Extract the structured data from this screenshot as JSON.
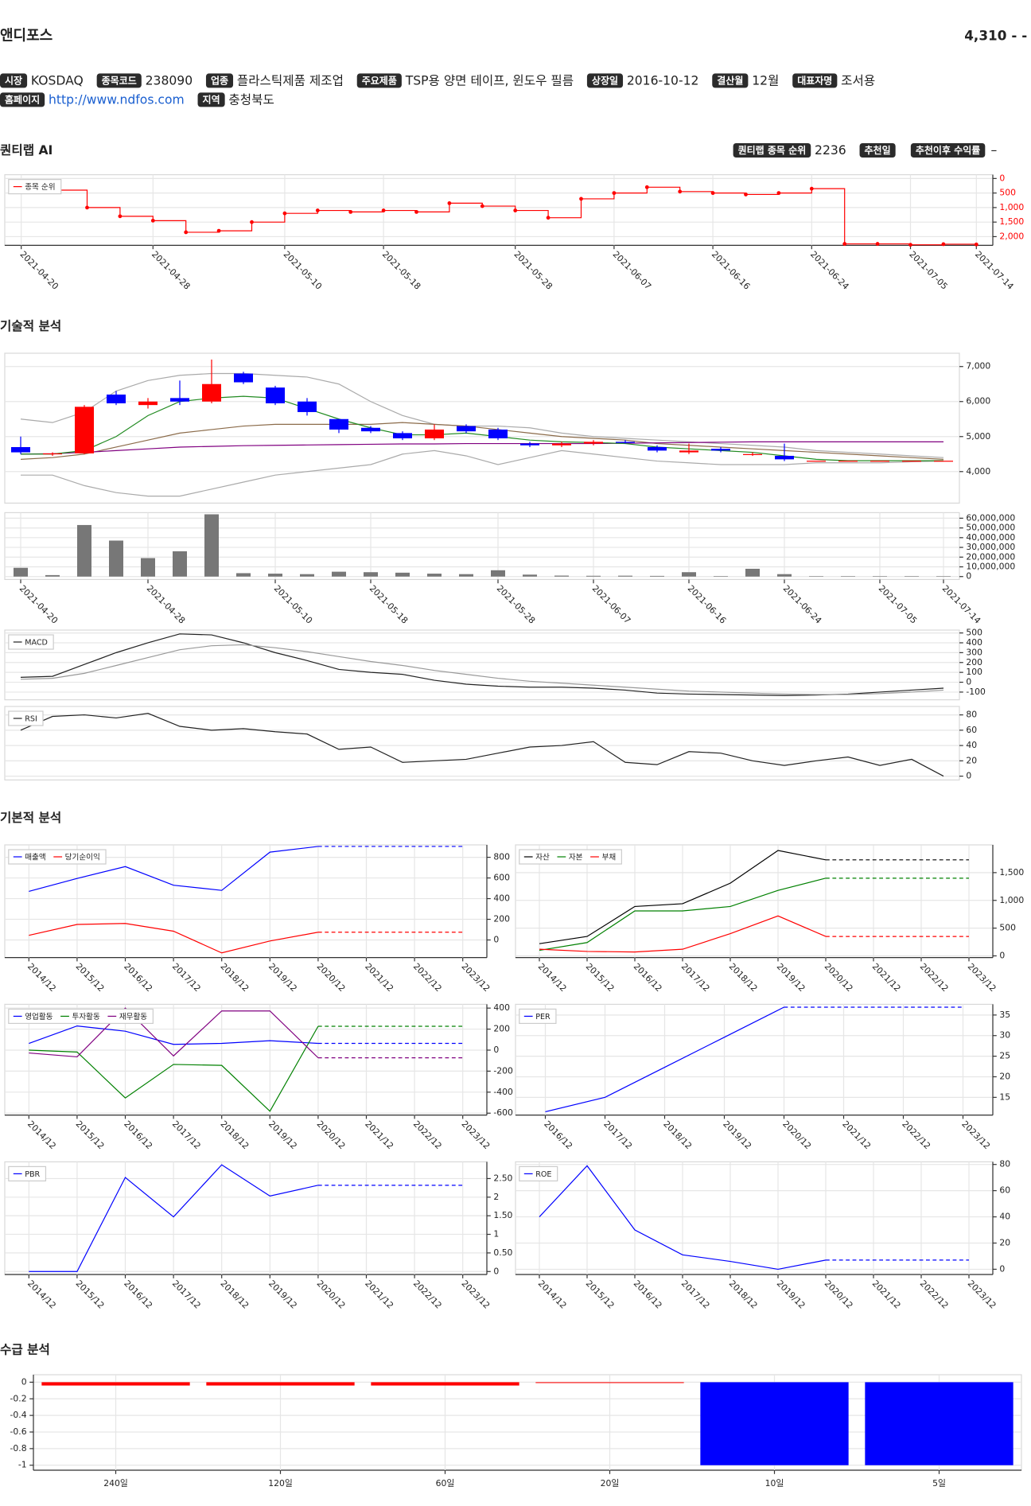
{
  "header": {
    "name": "앤디포스",
    "price": "4,310",
    "change": "- -"
  },
  "info": [
    {
      "label": "시장",
      "value": "KOSDAQ"
    },
    {
      "label": "종목코드",
      "value": "238090"
    },
    {
      "label": "업종",
      "value": "플라스틱제품 제조업"
    },
    {
      "label": "주요제품",
      "value": "TSP용 양면 테이프, 윈도우 필름"
    },
    {
      "label": "상장일",
      "value": "2016-10-12"
    },
    {
      "label": "결산월",
      "value": "12월"
    },
    {
      "label": "대표자명",
      "value": "조서용"
    },
    {
      "label": "홈페이지",
      "value": "http://www.ndfos.com"
    },
    {
      "label": "지역",
      "value": "충청북도"
    }
  ],
  "quantilab": {
    "title": "퀀티랩 AI",
    "rank_label": "퀀티랩 종목 순위",
    "rank": 2236,
    "rec_date_label": "추천일",
    "return_label": "추천이후 수익률",
    "return": "–"
  },
  "sections": [
    "기술적 분석",
    "기본적 분석",
    "수급 분석"
  ],
  "chart_data": [
    {
      "type": "line",
      "step": true,
      "markers": true,
      "legend": "upper left",
      "grid": true,
      "tick_color": "#ff0000",
      "categories": [
        "2021-04-20",
        null,
        null,
        null,
        "2021-04-28",
        null,
        null,
        null,
        "2021-05-10",
        null,
        null,
        "2021-05-18",
        null,
        null,
        null,
        "2021-05-28",
        null,
        null,
        "2021-06-07",
        null,
        null,
        "2021-06-16",
        null,
        null,
        "2021-06-24",
        null,
        null,
        "2021-07-05",
        null,
        "2021-07-14"
      ],
      "series": [
        {
          "name": "종목 순위",
          "color": "#ff0000",
          "values": [
            350,
            400,
            1000,
            1300,
            1450,
            1850,
            1800,
            1500,
            1200,
            1100,
            1150,
            1100,
            1150,
            850,
            950,
            1100,
            1350,
            700,
            500,
            300,
            450,
            500,
            550,
            500,
            350,
            2250,
            2250,
            2280,
            2260,
            2270
          ]
        }
      ],
      "ylim": [
        2300,
        -130
      ],
      "yticks": [
        0,
        500,
        {
          "value": 1000,
          "label": "1,000"
        },
        {
          "value": 1500,
          "label": "1,500"
        },
        {
          "value": 2000,
          "label": "2,000"
        }
      ]
    },
    {
      "type": "candlestick",
      "grid": true,
      "up_color": "#ff0000",
      "down_color": "#0000ff",
      "open": [
        4700,
        4500,
        4520,
        6200,
        5900,
        6100,
        6000,
        6800,
        6400,
        6000,
        5500,
        5250,
        5100,
        4950,
        5300,
        5200,
        4800,
        4750,
        4800,
        4850,
        4700,
        4550,
        4650,
        4500,
        4450,
        4310,
        4310,
        4310,
        4310,
        4310
      ],
      "high": [
        5000,
        4550,
        5900,
        6300,
        6100,
        6600,
        7200,
        6850,
        6450,
        6100,
        5500,
        5300,
        5150,
        5350,
        5350,
        5250,
        4850,
        4850,
        4900,
        4900,
        4750,
        4800,
        4700,
        4550,
        4800,
        4310,
        4310,
        4310,
        4310,
        4310
      ],
      "low": [
        4500,
        4450,
        4500,
        5900,
        5800,
        5900,
        5950,
        6500,
        5900,
        5600,
        5100,
        5100,
        4900,
        4900,
        5100,
        4900,
        4700,
        4700,
        4750,
        4800,
        4550,
        4500,
        4550,
        4450,
        4300,
        4310,
        4310,
        4310,
        4310,
        4310
      ],
      "close": [
        4550,
        4520,
        5850,
        5950,
        6000,
        6000,
        6500,
        6550,
        5950,
        5700,
        5200,
        5150,
        4950,
        5200,
        5150,
        4950,
        4750,
        4800,
        4850,
        4820,
        4600,
        4600,
        4600,
        4500,
        4350,
        4310,
        4310,
        4310,
        4310,
        4310
      ],
      "lines": [
        {
          "color": "#aaaaaa",
          "values": [
            5500,
            5400,
            5700,
            6300,
            6600,
            6750,
            6800,
            6800,
            6750,
            6700,
            6500,
            6000,
            5600,
            5350,
            5300,
            5300,
            5250,
            5100,
            5000,
            4950,
            4900,
            4850,
            4800,
            4750,
            4700,
            4600,
            4550,
            4500,
            4450,
            4400
          ]
        },
        {
          "color": "#aaaaaa",
          "values": [
            3900,
            3900,
            3600,
            3400,
            3300,
            3300,
            3500,
            3700,
            3900,
            4000,
            4100,
            4200,
            4500,
            4600,
            4450,
            4200,
            4400,
            4600,
            4500,
            4400,
            4300,
            4250,
            4200,
            4200,
            4200,
            4250,
            4250,
            4250,
            4280,
            4300
          ]
        },
        {
          "color": "#8b6b4a",
          "values": [
            4350,
            4400,
            4500,
            4700,
            4900,
            5100,
            5200,
            5300,
            5350,
            5350,
            5350,
            5350,
            5400,
            5350,
            5300,
            5200,
            5100,
            5000,
            4950,
            4900,
            4800,
            4750,
            4700,
            4650,
            4600,
            4550,
            4500,
            4450,
            4400,
            4350
          ]
        },
        {
          "color": "#800080",
          "values": [
            4500,
            4510,
            4550,
            4600,
            4650,
            4700,
            4720,
            4740,
            4750,
            4760,
            4770,
            4780,
            4790,
            4790,
            4800,
            4800,
            4800,
            4800,
            4800,
            4810,
            4820,
            4830,
            4840,
            4850,
            4850,
            4850,
            4850,
            4850,
            4850,
            4850
          ]
        },
        {
          "color": "#228b22",
          "values": [
            4500,
            4500,
            4600,
            5000,
            5600,
            6000,
            6100,
            6150,
            6100,
            5800,
            5500,
            5250,
            5050,
            5050,
            5100,
            5000,
            4900,
            4850,
            4830,
            4800,
            4700,
            4650,
            4600,
            4550,
            4450,
            4350,
            4310,
            4310,
            4310,
            4310
          ]
        }
      ],
      "ylim": [
        3100,
        7380
      ],
      "yticks": [
        {
          "value": 4000,
          "label": "4,000"
        },
        {
          "value": 5000,
          "label": "5,000"
        },
        {
          "value": 6000,
          "label": "6,000"
        },
        {
          "value": 7000,
          "label": "7,000"
        }
      ]
    },
    {
      "type": "bar",
      "grid": true,
      "color": "#777777",
      "categories": [
        "2021-04-20",
        null,
        null,
        null,
        "2021-04-28",
        null,
        null,
        null,
        "2021-05-10",
        null,
        null,
        "2021-05-18",
        null,
        null,
        null,
        "2021-05-28",
        null,
        null,
        "2021-06-07",
        null,
        null,
        "2021-06-16",
        null,
        null,
        "2021-06-24",
        null,
        null,
        "2021-07-05",
        null,
        "2021-07-14"
      ],
      "values": [
        9000000,
        1500000,
        53000000,
        37000000,
        19000000,
        26000000,
        64000000,
        3500000,
        3000000,
        2500000,
        5000000,
        4500000,
        4000000,
        3000000,
        2500000,
        6500000,
        2000000,
        1000000,
        800000,
        900000,
        700000,
        4500000,
        500000,
        8000000,
        2500000,
        300000,
        300000,
        300000,
        300000,
        300000
      ],
      "ylim": [
        -3000000,
        65700000
      ],
      "yticks": [
        0,
        {
          "value": 10000000,
          "label": "10,000,000"
        },
        {
          "value": 20000000,
          "label": "20,000,000"
        },
        {
          "value": 30000000,
          "label": "30,000,000"
        },
        {
          "value": 40000000,
          "label": "40,000,000"
        },
        {
          "value": 50000000,
          "label": "50,000,000"
        },
        {
          "value": 60000000,
          "label": "60,000,000"
        }
      ]
    },
    {
      "type": "line",
      "legend": "upper left",
      "grid": true,
      "series": [
        {
          "name": "MACD",
          "color": "#222222",
          "values": [
            50,
            60,
            180,
            300,
            400,
            490,
            480,
            400,
            300,
            220,
            130,
            100,
            80,
            20,
            -20,
            -40,
            -50,
            -50,
            -60,
            -80,
            -110,
            -120,
            -125,
            -130,
            -135,
            -130,
            -120,
            -100,
            -80,
            -60
          ]
        },
        {
          "color": "#999999",
          "values": [
            30,
            40,
            90,
            170,
            250,
            330,
            370,
            380,
            350,
            310,
            260,
            210,
            170,
            120,
            80,
            40,
            10,
            -10,
            -30,
            -50,
            -70,
            -90,
            -100,
            -110,
            -120,
            -125,
            -125,
            -115,
            -100,
            -80
          ]
        }
      ],
      "ylim": [
        -178,
        529
      ],
      "yticks": [
        -100,
        0,
        100,
        200,
        300,
        400,
        500
      ]
    },
    {
      "type": "line",
      "legend": "upper left",
      "grid": true,
      "series": [
        {
          "name": "RSI",
          "color": "#222222",
          "values": [
            60,
            78,
            80,
            76,
            82,
            65,
            60,
            62,
            58,
            55,
            35,
            38,
            18,
            20,
            22,
            30,
            38,
            40,
            45,
            18,
            15,
            32,
            30,
            20,
            14,
            20,
            25,
            14,
            22,
            0
          ]
        }
      ],
      "ylim": [
        -5,
        91
      ],
      "yticks": [
        0,
        20,
        40,
        60,
        80
      ]
    },
    {
      "type": "line",
      "legend": "upper left",
      "grid": true,
      "forecast_style": "dashed",
      "categories": [
        "2014/12",
        "2015/12",
        "2016/12",
        "2017/12",
        "2018/12",
        "2019/12",
        "2020/12",
        "2021/12",
        "2022/12",
        "2023/12"
      ],
      "series": [
        {
          "name": "매출액",
          "color": "#0000ff",
          "values": [
            470,
            595,
            710,
            530,
            480,
            850,
            905,
            null,
            null,
            null
          ]
        },
        {
          "name": "당기순이익",
          "color": "#ff0000",
          "values": [
            45,
            150,
            160,
            85,
            -125,
            -10,
            75,
            null,
            null,
            null
          ]
        }
      ],
      "ylim": [
        -170,
        920
      ],
      "yticks": [
        0,
        200,
        400,
        600,
        800
      ]
    },
    {
      "type": "line",
      "legend": "upper left",
      "grid": true,
      "forecast_style": "dashed",
      "categories": [
        "2014/12",
        "2015/12",
        "2016/12",
        "2017/12",
        "2018/12",
        "2019/12",
        "2020/12",
        "2021/12",
        "2022/12",
        "2023/12"
      ],
      "series": [
        {
          "name": "자산",
          "color": "#000000",
          "values": [
            220,
            350,
            890,
            940,
            1310,
            1900,
            1730,
            null,
            null,
            null
          ]
        },
        {
          "name": "자본",
          "color": "#008000",
          "values": [
            100,
            240,
            810,
            810,
            890,
            1180,
            1400,
            null,
            null,
            null
          ]
        },
        {
          "name": "부채",
          "color": "#ff0000",
          "values": [
            120,
            80,
            70,
            120,
            400,
            720,
            350,
            null,
            null,
            null
          ]
        }
      ],
      "ylim": [
        -30,
        2000
      ],
      "yticks": [
        0,
        500,
        {
          "value": 1000,
          "label": "1,000"
        },
        {
          "value": 1500,
          "label": "1,500"
        }
      ]
    },
    {
      "type": "line",
      "legend": "upper left",
      "grid": true,
      "forecast_style": "dashed",
      "categories": [
        "2014/12",
        "2015/12",
        "2016/12",
        "2017/12",
        "2018/12",
        "2019/12",
        "2020/12",
        "2021/12",
        "2022/12",
        "2023/12"
      ],
      "series": [
        {
          "name": "영업활동",
          "color": "#0000ff",
          "values": [
            64,
            230,
            180,
            55,
            64,
            90,
            64,
            null,
            null,
            null
          ]
        },
        {
          "name": "투자활동",
          "color": "#008000",
          "values": [
            0,
            -18,
            -455,
            -136,
            -145,
            -582,
            227,
            null,
            null,
            null
          ]
        },
        {
          "name": "재무활동",
          "color": "#800080",
          "values": [
            -27,
            -64,
            400,
            -55,
            373,
            373,
            -73,
            null,
            null,
            null
          ]
        }
      ],
      "ylim": [
        -618,
        436
      ],
      "yticks": [
        -600,
        -400,
        -200,
        0,
        200,
        400
      ]
    },
    {
      "type": "line",
      "legend": "upper left",
      "grid": true,
      "forecast_style": "dashed",
      "categories": [
        "2016/12",
        "2017/12",
        "2018/12",
        "2019/12",
        "2020/12",
        "2021/12",
        "2022/12",
        "2023/12"
      ],
      "series": [
        {
          "name": "PER",
          "color": "#0000ff",
          "values": [
            11.5,
            15,
            22.3,
            29.6,
            36.9,
            null,
            null,
            null
          ]
        }
      ],
      "ylim": [
        10.7,
        37.6
      ],
      "yticks": [
        15,
        20,
        25,
        30,
        35
      ]
    },
    {
      "type": "line",
      "legend": "upper left",
      "grid": true,
      "forecast_style": "dashed",
      "categories": [
        "2014/12",
        "2015/12",
        "2016/12",
        "2017/12",
        "2018/12",
        "2019/12",
        "2020/12",
        "2021/12",
        "2022/12",
        "2023/12"
      ],
      "series": [
        {
          "name": "PBR",
          "color": "#0000ff",
          "values": [
            0,
            0,
            2.53,
            1.47,
            2.87,
            2.03,
            2.32,
            null,
            null,
            null
          ]
        }
      ],
      "ylim": [
        -0.08,
        2.95
      ],
      "yticks": [
        0,
        {
          "value": 0.5,
          "label": "0.50"
        },
        1,
        {
          "value": 1.5,
          "label": "1.50"
        },
        2,
        {
          "value": 2.5,
          "label": "2.50"
        }
      ]
    },
    {
      "type": "line",
      "legend": "upper left",
      "grid": true,
      "forecast_style": "dashed",
      "categories": [
        "2014/12",
        "2015/12",
        "2016/12",
        "2017/12",
        "2018/12",
        "2019/12",
        "2020/12",
        "2021/12",
        "2022/12",
        "2023/12"
      ],
      "series": [
        {
          "name": "ROE",
          "color": "#0000ff",
          "values": [
            40,
            79,
            30,
            11,
            6,
            0,
            7,
            null,
            null,
            null
          ]
        }
      ],
      "ylim": [
        -4,
        82
      ],
      "yticks": [
        0,
        20,
        40,
        60,
        80
      ]
    },
    {
      "type": "bar",
      "grid": true,
      "categories": [
        "240일",
        "120일",
        "60일",
        "20일",
        "10일",
        "5일"
      ],
      "values": [
        -0.04,
        -0.04,
        -0.04,
        -0.01,
        -1,
        -1
      ],
      "colors": [
        "#ff0000",
        "#ff0000",
        "#ff0000",
        "#ff0000",
        "#0000ff",
        "#0000ff"
      ],
      "ylim": [
        -1.06,
        0.09
      ],
      "yticks": [
        -1,
        -0.8,
        -0.6,
        -0.4,
        -0.2,
        0
      ]
    }
  ]
}
